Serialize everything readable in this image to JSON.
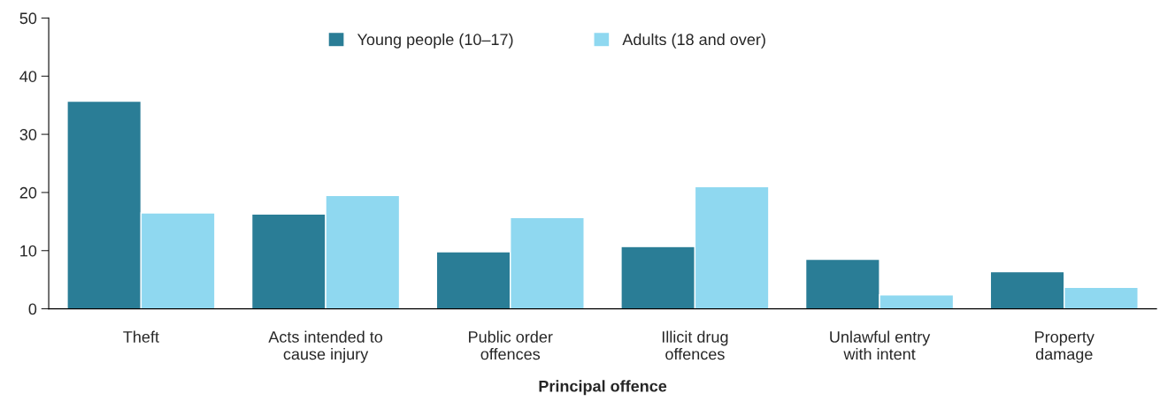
{
  "chart_data": {
    "type": "bar",
    "xlabel": "Principal offence",
    "categories": [
      "Theft",
      "Acts intended to\ncause injury",
      "Public order\noffences",
      "Illicit drug\noffences",
      "Unlawful entry\nwith intent",
      "Property\ndamage"
    ],
    "series": [
      {
        "name": "Young people (10–17)",
        "color": "#2a7d96",
        "values": [
          35.7,
          16.3,
          9.8,
          10.7,
          8.5,
          6.4
        ]
      },
      {
        "name": "Adults (18 and over)",
        "color": "#8fd8f0",
        "values": [
          16.5,
          19.5,
          15.7,
          21.0,
          2.4,
          3.7
        ]
      }
    ],
    "ylim": [
      0,
      50
    ],
    "yticks": [
      0,
      10,
      20,
      30,
      40,
      50
    ],
    "grid": false,
    "legend": "top"
  }
}
